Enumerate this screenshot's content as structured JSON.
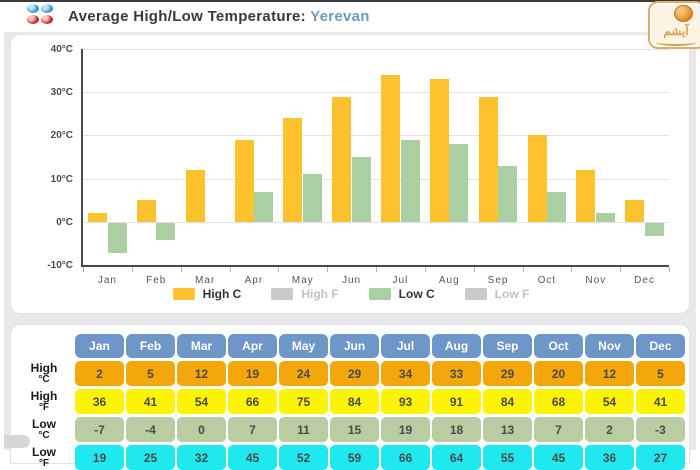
{
  "header": {
    "title": "Average High/Low Temperature:",
    "city": "Yerevan",
    "logo_text": "آیشم"
  },
  "chart_data": {
    "type": "bar",
    "title": "Average High/Low Temperature: Yerevan",
    "categories": [
      "Jan",
      "Feb",
      "Mar",
      "Apr",
      "May",
      "Jun",
      "Jul",
      "Aug",
      "Sep",
      "Oct",
      "Nov",
      "Dec"
    ],
    "series": [
      {
        "name": "High C",
        "color": "#fcc22d",
        "values": [
          2,
          5,
          12,
          19,
          24,
          29,
          34,
          33,
          29,
          20,
          12,
          5
        ]
      },
      {
        "name": "Low C",
        "color": "#aacfa3",
        "values": [
          -7,
          -4,
          0,
          7,
          11,
          15,
          19,
          18,
          13,
          7,
          2,
          -3
        ]
      }
    ],
    "legend": [
      {
        "label": "High C",
        "color": "#fcc22d",
        "active": true
      },
      {
        "label": "High F",
        "color": "#c9c9c9",
        "active": false
      },
      {
        "label": "Low C",
        "color": "#aacfa3",
        "active": true
      },
      {
        "label": "Low F",
        "color": "#c9c9c9",
        "active": false
      }
    ],
    "legend_position": "bottom",
    "grid": true,
    "ylim": [
      -10,
      40
    ],
    "y_tick_values": [
      40,
      30,
      20,
      10,
      0,
      -10
    ],
    "y_tick_labels": [
      "40°C",
      "30°C",
      "20°C",
      "10°C",
      "0°C",
      "-10°C"
    ]
  },
  "table": {
    "header_color": "#6e96c8",
    "columns": [
      "Jan",
      "Feb",
      "Mar",
      "Apr",
      "May",
      "Jun",
      "Jul",
      "Aug",
      "Sep",
      "Oct",
      "Nov",
      "Dec"
    ],
    "rows": [
      {
        "label": "High",
        "unit": "°C",
        "color": "#f3a70b",
        "values": [
          2,
          5,
          12,
          19,
          24,
          29,
          34,
          33,
          29,
          20,
          12,
          5
        ]
      },
      {
        "label": "High",
        "unit": "°F",
        "color": "#fcf402",
        "values": [
          36,
          41,
          54,
          66,
          75,
          84,
          93,
          91,
          84,
          68,
          54,
          41
        ]
      },
      {
        "label": "Low",
        "unit": "°C",
        "color": "#b9cca2",
        "values": [
          -7,
          -4,
          0,
          7,
          11,
          15,
          19,
          18,
          13,
          7,
          2,
          -3
        ]
      },
      {
        "label": "Low",
        "unit": "°F",
        "color": "#1fe9ef",
        "values": [
          19,
          25,
          32,
          45,
          52,
          59,
          66,
          64,
          55,
          45,
          36,
          27
        ]
      }
    ]
  }
}
